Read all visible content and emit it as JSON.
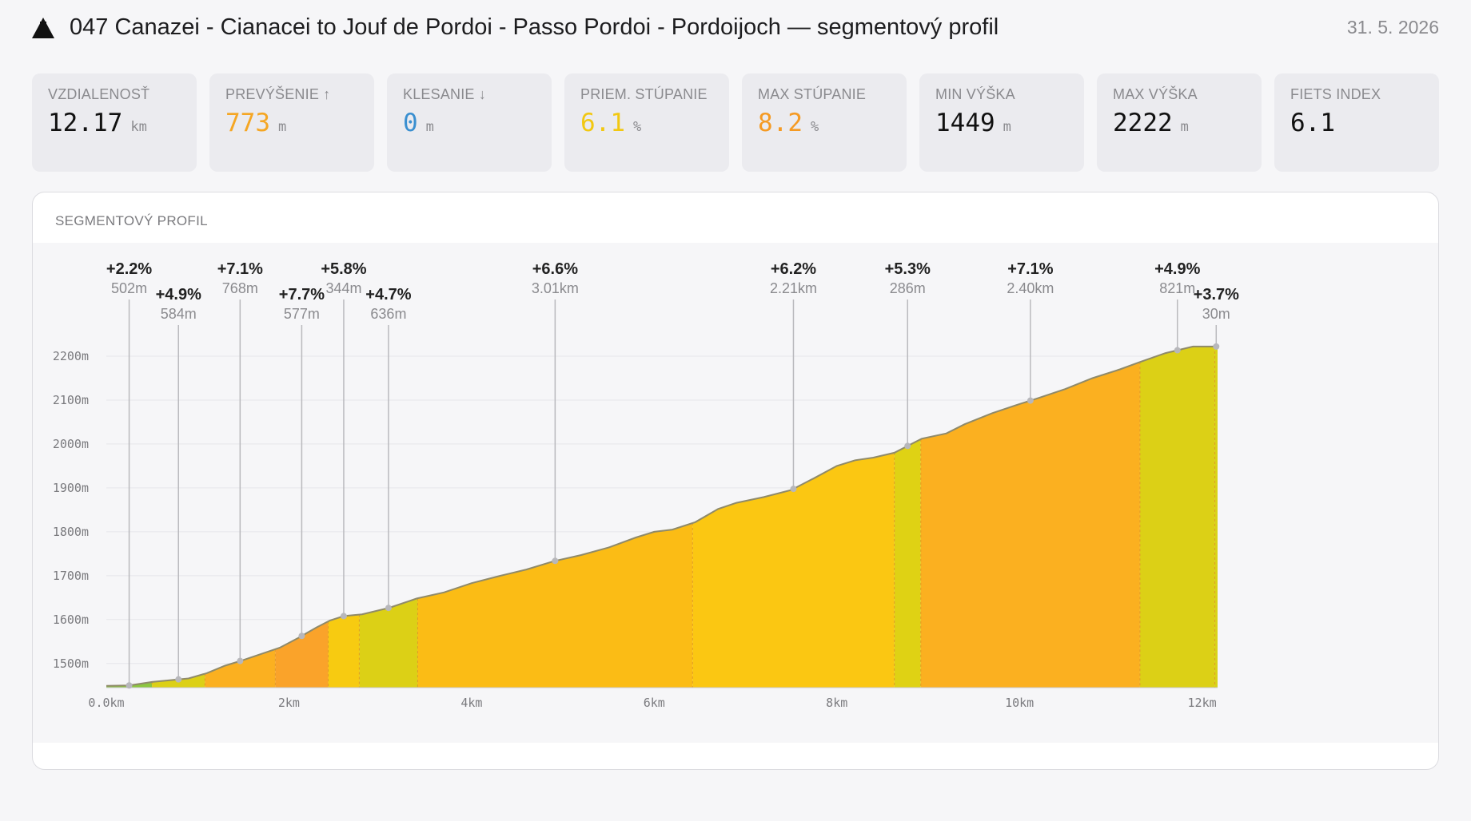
{
  "header": {
    "title": "047 Canazei - Cianacei to Jouf de Pordoi - Passo Pordoi - Pordoijoch — segmentový profil",
    "date": "31. 5. 2026",
    "icon": "mountain-icon"
  },
  "stats": [
    {
      "label": "VZDIALENOSŤ",
      "value": "12.17",
      "unit": "km",
      "color": "#111111"
    },
    {
      "label": "PREVÝŠENIE ↑",
      "value": "773",
      "unit": "m",
      "color": "#f5a623"
    },
    {
      "label": "KLESANIE ↓",
      "value": "0",
      "unit": "m",
      "color": "#3a8fd0"
    },
    {
      "label": "PRIEM. STÚPANIE",
      "value": "6.1",
      "unit": "%",
      "color": "#f2c811"
    },
    {
      "label": "MAX STÚPANIE",
      "value": "8.2",
      "unit": "%",
      "color": "#f59a23"
    },
    {
      "label": "MIN VÝŠKA",
      "value": "1449",
      "unit": "m",
      "color": "#111111"
    },
    {
      "label": "MAX VÝŠKA",
      "value": "2222",
      "unit": "m",
      "color": "#111111"
    },
    {
      "label": "FIETS INDEX",
      "value": "6.1",
      "unit": "",
      "color": "#111111"
    }
  ],
  "panel": {
    "title": "SEGMENTOVÝ PROFIL"
  },
  "chart_data": {
    "type": "area",
    "x_unit": "km",
    "y_unit": "m",
    "xlim": [
      0,
      12.17
    ],
    "ylim": [
      1445,
      2300
    ],
    "x_ticks": [
      0,
      2,
      4,
      6,
      8,
      10,
      12
    ],
    "x_tick_labels": [
      "0.0km",
      "2km",
      "4km",
      "6km",
      "8km",
      "10km",
      "12km"
    ],
    "y_ticks": [
      1500,
      1600,
      1700,
      1800,
      1900,
      2000,
      2100,
      2200
    ],
    "y_tick_labels": [
      "1500m",
      "1600m",
      "1700m",
      "1800m",
      "1900m",
      "2000m",
      "2100m",
      "2200m"
    ],
    "grid": true,
    "profile": {
      "x": [
        0,
        0.25,
        0.5,
        0.9,
        1.1,
        1.3,
        1.5,
        1.9,
        2.1,
        2.3,
        2.45,
        2.6,
        2.8,
        3.1,
        3.4,
        3.7,
        4.0,
        4.3,
        4.6,
        4.9,
        5.2,
        5.5,
        5.8,
        6.0,
        6.2,
        6.45,
        6.7,
        6.9,
        7.2,
        7.5,
        7.75,
        8.0,
        8.2,
        8.4,
        8.63,
        8.93,
        9.2,
        9.4,
        9.7,
        10.0,
        10.2,
        10.5,
        10.8,
        11.1,
        11.31,
        11.6,
        11.9,
        12.17
      ],
      "y": [
        1449,
        1450,
        1458,
        1466,
        1478,
        1495,
        1508,
        1536,
        1558,
        1582,
        1598,
        1608,
        1612,
        1627,
        1648,
        1662,
        1683,
        1699,
        1714,
        1733,
        1747,
        1764,
        1787,
        1800,
        1805,
        1822,
        1852,
        1866,
        1879,
        1895,
        1922,
        1950,
        1963,
        1969,
        1980,
        2012,
        2024,
        2045,
        2070,
        2091,
        2104,
        2125,
        2150,
        2170,
        2186,
        2207,
        2222,
        2222
      ]
    },
    "segments": [
      {
        "start_km": 0.0,
        "end_km": 0.5,
        "grade": "+2.2%",
        "length": "502m",
        "color": "#8cc63f"
      },
      {
        "start_km": 0.5,
        "end_km": 1.08,
        "grade": "+4.9%",
        "length": "584m",
        "color": "#dcd016"
      },
      {
        "start_km": 1.08,
        "end_km": 1.85,
        "grade": "+7.1%",
        "length": "768m",
        "color": "#fbb020"
      },
      {
        "start_km": 1.85,
        "end_km": 2.43,
        "grade": "+7.7%",
        "length": "577m",
        "color": "#faa32a"
      },
      {
        "start_km": 2.43,
        "end_km": 2.77,
        "grade": "+5.8%",
        "length": "344m",
        "color": "#f7cb11"
      },
      {
        "start_km": 2.77,
        "end_km": 3.41,
        "grade": "+4.7%",
        "length": "636m",
        "color": "#dcd016"
      },
      {
        "start_km": 3.41,
        "end_km": 6.42,
        "grade": "+6.6%",
        "length": "3.01km",
        "color": "#fbbc15"
      },
      {
        "start_km": 6.42,
        "end_km": 8.63,
        "grade": "+6.2%",
        "length": "2.21km",
        "color": "#fbc712"
      },
      {
        "start_km": 8.63,
        "end_km": 8.92,
        "grade": "+5.3%",
        "length": "286m",
        "color": "#dfd214"
      },
      {
        "start_km": 8.92,
        "end_km": 11.32,
        "grade": "+7.1%",
        "length": "2.40km",
        "color": "#fbb020"
      },
      {
        "start_km": 11.32,
        "end_km": 12.14,
        "grade": "+4.9%",
        "length": "821m",
        "color": "#dcd016"
      },
      {
        "start_km": 12.14,
        "end_km": 12.17,
        "grade": "+3.7%",
        "length": "30m",
        "color": "#d9d318"
      }
    ]
  }
}
